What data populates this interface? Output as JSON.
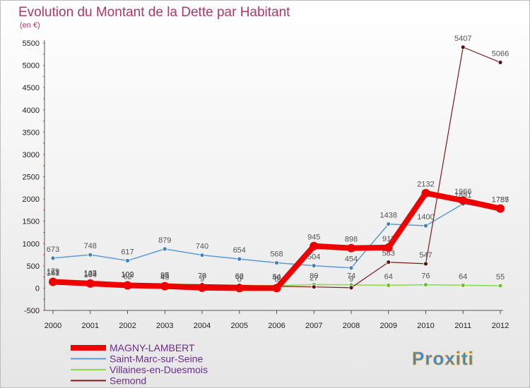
{
  "chart_data": {
    "type": "line",
    "title": "Evolution du Montant de la Dette par Habitant",
    "subtitle": "(en €)",
    "x": [
      "2000",
      "2001",
      "2002",
      "2003",
      "2004",
      "2005",
      "2006",
      "2007",
      "2008",
      "2009",
      "2010",
      "2011",
      "2012"
    ],
    "y_ticks": [
      "-500",
      "0",
      "500",
      "1000",
      "1500",
      "2000",
      "2500",
      "3000",
      "3500",
      "4000",
      "4500",
      "5000",
      "5500"
    ],
    "ylim": [
      -500,
      5500
    ],
    "grid": false,
    "legend_position": "bottom-left",
    "series": [
      {
        "name": "MAGNY-LAMBERT",
        "color": "#ee0000",
        "values": [
          141,
          104,
          62,
          45,
          9,
          0,
          0,
          945,
          898,
          911,
          2132,
          1966,
          1785
        ],
        "labels": [
          "141",
          "104",
          "62",
          "45",
          "9",
          "0",
          "0",
          "945",
          "898",
          "911",
          "2132",
          "1966",
          "1785"
        ]
      },
      {
        "name": "Saint-Marc-sur-Seine",
        "color": "#5b9bd5",
        "values": [
          673,
          748,
          617,
          879,
          740,
          654,
          568,
          504,
          454,
          1438,
          1400,
          1891,
          1787
        ],
        "labels": [
          "673",
          "748",
          "617",
          "879",
          "740",
          "654",
          "568",
          "504",
          "454",
          "1438",
          "1400",
          "1891",
          "1787"
        ]
      },
      {
        "name": "Villaines-en-Duesmois",
        "color": "#88dd44",
        "values": [
          179,
          142,
          102,
          95,
          76,
          66,
          54,
          80,
          74,
          64,
          76,
          64,
          55
        ],
        "labels": [
          "179",
          "142",
          "102",
          "95",
          "76",
          "66",
          "54",
          "80",
          "74",
          "64",
          "76",
          "64",
          "55"
        ]
      },
      {
        "name": "Semond",
        "color": "#7a1c1c",
        "values": [
          153,
          129,
          109,
          83,
          79,
          62,
          40,
          27,
          9,
          583,
          547,
          5407,
          5066
        ],
        "labels": [
          "153",
          "129",
          "109",
          "83",
          "79",
          "62",
          "40",
          "27",
          "9",
          "583",
          "547",
          "5407",
          "5066"
        ]
      }
    ]
  },
  "logo": {
    "text": "Proxiti"
  }
}
